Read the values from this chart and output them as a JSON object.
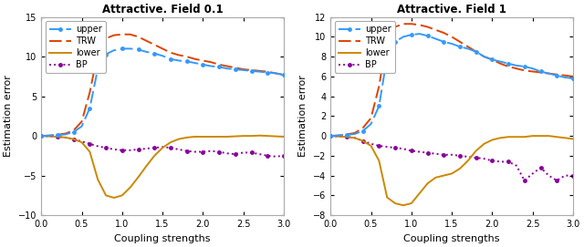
{
  "title1": "Attractive. Field 0.1",
  "title2": "Attractive. Field 1",
  "xlabel": "Coupling strengths",
  "ylabel": "Estimation error",
  "x": [
    0.0,
    0.1,
    0.2,
    0.3,
    0.4,
    0.5,
    0.6,
    0.7,
    0.8,
    0.9,
    1.0,
    1.1,
    1.2,
    1.3,
    1.4,
    1.5,
    1.6,
    1.7,
    1.8,
    1.9,
    2.0,
    2.1,
    2.2,
    2.3,
    2.4,
    2.5,
    2.6,
    2.7,
    2.8,
    2.9,
    3.0
  ],
  "upper1": [
    0.0,
    0.05,
    0.1,
    0.2,
    0.5,
    1.2,
    3.5,
    8.5,
    10.3,
    10.8,
    11.0,
    11.0,
    10.9,
    10.6,
    10.4,
    10.1,
    9.7,
    9.5,
    9.4,
    9.2,
    9.0,
    8.8,
    8.7,
    8.5,
    8.4,
    8.3,
    8.2,
    8.1,
    8.0,
    7.9,
    7.7
  ],
  "TRW1": [
    0.0,
    0.05,
    0.15,
    0.3,
    0.7,
    1.8,
    5.5,
    10.5,
    12.3,
    12.7,
    12.8,
    12.8,
    12.5,
    12.0,
    11.5,
    11.0,
    10.5,
    10.2,
    10.0,
    9.7,
    9.5,
    9.3,
    9.0,
    8.8,
    8.6,
    8.4,
    8.3,
    8.2,
    8.1,
    7.9,
    7.7
  ],
  "lower1": [
    0.0,
    -0.05,
    -0.1,
    -0.2,
    -0.4,
    -0.8,
    -2.0,
    -5.5,
    -7.5,
    -7.8,
    -7.5,
    -6.5,
    -5.2,
    -3.8,
    -2.5,
    -1.5,
    -0.8,
    -0.4,
    -0.2,
    -0.1,
    -0.1,
    -0.1,
    -0.1,
    -0.1,
    -0.05,
    0.0,
    0.0,
    0.05,
    0.0,
    -0.05,
    -0.1
  ],
  "BP1": [
    0.0,
    -0.05,
    -0.1,
    -0.2,
    -0.4,
    -0.7,
    -1.0,
    -1.3,
    -1.5,
    -1.7,
    -1.8,
    -1.8,
    -1.7,
    -1.6,
    -1.5,
    -1.4,
    -1.5,
    -1.7,
    -1.9,
    -2.0,
    -2.0,
    -1.9,
    -2.0,
    -2.2,
    -2.3,
    -2.1,
    -2.1,
    -2.3,
    -2.5,
    -2.6,
    -2.5
  ],
  "upper2": [
    0.0,
    0.05,
    0.1,
    0.2,
    0.5,
    1.2,
    3.0,
    8.0,
    9.5,
    10.0,
    10.2,
    10.3,
    10.1,
    9.8,
    9.5,
    9.3,
    9.0,
    8.8,
    8.5,
    8.0,
    7.7,
    7.5,
    7.3,
    7.1,
    7.0,
    6.8,
    6.5,
    6.3,
    6.1,
    5.9,
    5.8
  ],
  "TRW2": [
    0.0,
    0.05,
    0.15,
    0.3,
    0.8,
    1.8,
    5.0,
    10.0,
    11.0,
    11.3,
    11.3,
    11.2,
    11.0,
    10.7,
    10.4,
    10.0,
    9.5,
    9.0,
    8.5,
    8.0,
    7.7,
    7.3,
    7.0,
    6.8,
    6.6,
    6.5,
    6.4,
    6.3,
    6.2,
    6.1,
    6.0
  ],
  "lower2": [
    0.0,
    -0.05,
    -0.1,
    -0.2,
    -0.5,
    -1.0,
    -2.5,
    -6.2,
    -6.8,
    -7.0,
    -6.8,
    -5.8,
    -4.8,
    -4.2,
    -4.0,
    -3.8,
    -3.3,
    -2.5,
    -1.5,
    -0.8,
    -0.4,
    -0.2,
    -0.1,
    -0.1,
    -0.1,
    0.0,
    0.0,
    0.0,
    -0.1,
    -0.2,
    -0.3
  ],
  "BP2": [
    0.0,
    -0.05,
    -0.1,
    -0.2,
    -0.5,
    -0.8,
    -1.0,
    -1.1,
    -1.2,
    -1.3,
    -1.5,
    -1.6,
    -1.7,
    -1.8,
    -1.9,
    -1.9,
    -2.0,
    -2.1,
    -2.2,
    -2.3,
    -2.5,
    -2.6,
    -2.6,
    -3.0,
    -4.5,
    -3.8,
    -3.2,
    -4.0,
    -4.5,
    -4.0,
    -4.0
  ],
  "color_upper": "#3399ff",
  "color_TRW": "#dd4400",
  "color_lower": "#cc8800",
  "color_BP": "#880099",
  "ylim1": [
    -10,
    15
  ],
  "ylim2": [
    -8,
    12
  ],
  "xlim": [
    0,
    3
  ],
  "yticks1": [
    -10,
    -5,
    0,
    5,
    10,
    15
  ],
  "yticks2": [
    -8,
    -6,
    -4,
    -2,
    0,
    2,
    4,
    6,
    8,
    10,
    12
  ],
  "xticks": [
    0,
    0.5,
    1.0,
    1.5,
    2.0,
    2.5,
    3.0
  ]
}
